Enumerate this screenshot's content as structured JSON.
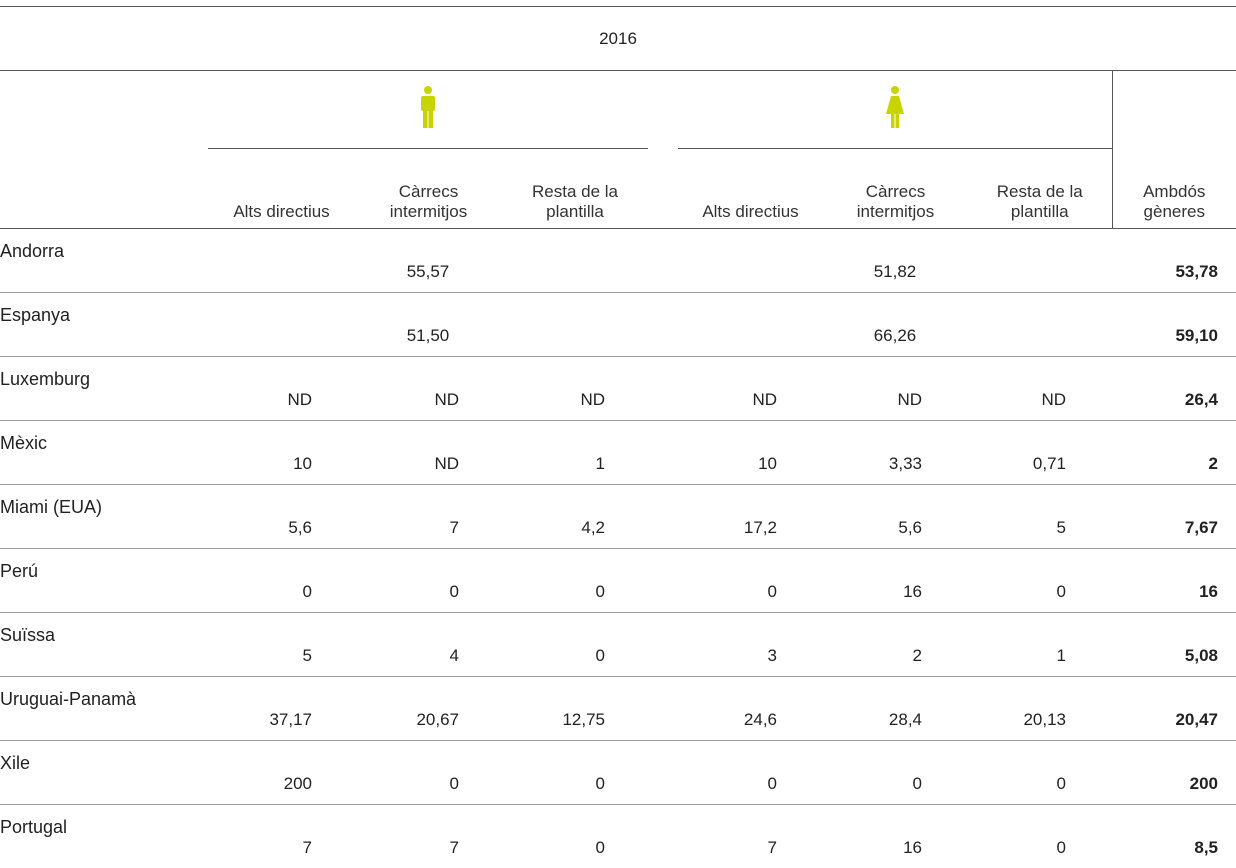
{
  "header": {
    "year": "2016"
  },
  "men_columns": [
    "Alts directius",
    "Càrrecs\nintermitjos",
    "Resta de la\nplantilla"
  ],
  "women_columns": [
    "Alts directius",
    "Càrrecs\nintermitjos",
    "Resta de la\nplantilla"
  ],
  "total_column": "Ambdós\ngèneres",
  "rows": [
    {
      "label": "Andorra",
      "men": [
        "55,57"
      ],
      "women": [
        "51,82"
      ],
      "total": "53,78"
    },
    {
      "label": "Espanya",
      "men": [
        "51,50"
      ],
      "women": [
        "66,26"
      ],
      "total": "59,10"
    },
    {
      "label": "Luxemburg",
      "men": [
        "ND",
        "ND",
        "ND"
      ],
      "women": [
        "ND",
        "ND",
        "ND"
      ],
      "total": "26,4"
    },
    {
      "label": "Mèxic",
      "men": [
        "10",
        "ND",
        "1"
      ],
      "women": [
        "10",
        "3,33",
        "0,71"
      ],
      "total": "2"
    },
    {
      "label": "Miami (EUA)",
      "men": [
        "5,6",
        "7",
        "4,2"
      ],
      "women": [
        "17,2",
        "5,6",
        "5"
      ],
      "total": "7,67"
    },
    {
      "label": "Perú",
      "men": [
        "0",
        "0",
        "0"
      ],
      "women": [
        "0",
        "16",
        "0"
      ],
      "total": "16"
    },
    {
      "label": "Suïssa",
      "men": [
        "5",
        "4",
        "0"
      ],
      "women": [
        "3",
        "2",
        "1"
      ],
      "total": "5,08"
    },
    {
      "label": "Uruguai-Panamà",
      "men": [
        "37,17",
        "20,67",
        "12,75"
      ],
      "women": [
        "24,6",
        "28,4",
        "20,13"
      ],
      "total": "20,47"
    },
    {
      "label": "Xile",
      "men": [
        "200",
        "0",
        "0"
      ],
      "women": [
        "0",
        "0",
        "0"
      ],
      "total": "200"
    },
    {
      "label": "Portugal",
      "men": [
        "7",
        "7",
        "0"
      ],
      "women": [
        "7",
        "16",
        "0"
      ],
      "total": "8,5"
    }
  ]
}
